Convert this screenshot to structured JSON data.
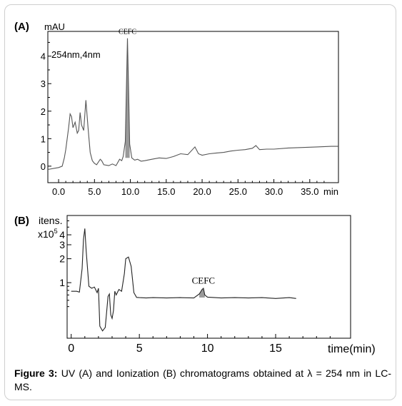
{
  "chart_data": [
    {
      "type": "line",
      "panel_label": "(A)",
      "ylabel": "mAU",
      "xlabel": "min",
      "annotation": "254nm,4nm",
      "peak_label": "CEFC",
      "xlim": [
        -1.5,
        39.0
      ],
      "ylim": [
        -0.6,
        4.9
      ],
      "x_ticks": [
        "0.0",
        "5.0",
        "10.0",
        "15.0",
        "20.0",
        "25.0",
        "30.0",
        "35.0"
      ],
      "y_ticks": [
        "0",
        "1",
        "2",
        "3",
        "4"
      ],
      "peak": {
        "x": 9.6,
        "y": 4.65
      },
      "series": [
        {
          "x": [
            -1.5,
            0.0,
            0.5,
            0.8,
            1.0,
            1.2,
            1.4,
            1.6,
            1.8,
            2.0,
            2.3,
            2.6,
            2.8,
            3.0,
            3.2,
            3.5,
            3.8,
            4.1,
            4.4,
            4.7,
            5.0,
            5.3,
            5.8,
            6.0,
            6.3,
            7.0,
            7.5,
            8.0,
            8.5,
            8.8,
            9.0,
            9.3,
            9.45,
            9.6,
            9.75,
            9.9,
            10.2,
            10.6,
            11.0,
            11.5,
            12.0,
            13.0,
            14.0,
            15.0,
            16.0,
            17.0,
            18.0,
            19.0,
            19.5,
            20.0,
            21.0,
            22.0,
            23.0,
            24.0,
            25.0,
            26.0,
            27.0,
            27.5,
            28.0,
            29.0,
            30.0,
            32.0,
            34.0,
            36.0,
            38.0,
            39.0
          ],
          "y": [
            -0.12,
            -0.05,
            0.0,
            0.3,
            0.6,
            1.0,
            1.4,
            1.9,
            1.8,
            1.4,
            1.6,
            1.2,
            1.3,
            1.95,
            1.5,
            1.3,
            2.4,
            1.4,
            0.5,
            0.2,
            0.1,
            0.05,
            0.25,
            0.2,
            0.05,
            0.02,
            0.08,
            0.02,
            0.25,
            0.2,
            0.35,
            0.9,
            2.8,
            4.65,
            2.8,
            0.8,
            0.3,
            0.22,
            0.25,
            0.18,
            0.2,
            0.25,
            0.3,
            0.28,
            0.35,
            0.45,
            0.42,
            0.7,
            0.45,
            0.4,
            0.45,
            0.48,
            0.5,
            0.55,
            0.58,
            0.6,
            0.65,
            0.75,
            0.6,
            0.62,
            0.62,
            0.66,
            0.68,
            0.7,
            0.72,
            0.72
          ]
        }
      ]
    },
    {
      "type": "line",
      "panel_label": "(B)",
      "ylabel": "itens.",
      "y_multiplier_base": "x10",
      "y_multiplier_exp": "5",
      "xlabel": "time(min)",
      "peak_label": "CEFC",
      "yscale": "log",
      "xlim": [
        -0.3,
        20.5
      ],
      "ylim": [
        0.2,
        7.0
      ],
      "x_ticks": [
        "0",
        "5",
        "10",
        "15"
      ],
      "y_tick_labels": [
        "1",
        "2",
        "3",
        "4"
      ],
      "peak": {
        "x": 9.7,
        "y": 0.82
      },
      "series": [
        {
          "x": [
            0.0,
            0.4,
            0.6,
            0.8,
            0.9,
            1.0,
            1.1,
            1.3,
            1.5,
            1.7,
            1.9,
            2.0,
            2.1,
            2.3,
            2.5,
            2.7,
            2.8,
            2.9,
            3.0,
            3.1,
            3.2,
            3.3,
            3.5,
            3.7,
            3.9,
            4.0,
            4.2,
            4.4,
            4.6,
            4.8,
            5.0,
            5.5,
            6.0,
            7.0,
            8.0,
            9.0,
            9.4,
            9.6,
            9.7,
            9.8,
            10.0,
            11.0,
            12.0,
            13.0,
            14.0,
            15.0,
            16.0,
            16.5
          ],
          "y": [
            0.78,
            0.78,
            0.76,
            1.5,
            3.5,
            4.8,
            2.5,
            0.9,
            0.85,
            0.88,
            0.75,
            0.85,
            0.28,
            0.25,
            0.27,
            0.68,
            0.72,
            0.4,
            0.35,
            0.45,
            0.78,
            0.7,
            0.82,
            0.78,
            1.3,
            2.0,
            2.1,
            1.6,
            0.75,
            0.66,
            0.64,
            0.65,
            0.64,
            0.65,
            0.64,
            0.65,
            0.72,
            0.82,
            0.85,
            0.7,
            0.65,
            0.65,
            0.64,
            0.65,
            0.64,
            0.64,
            0.64,
            0.64
          ]
        }
      ]
    }
  ],
  "caption": {
    "label": "Figure 3:",
    "text": " UV (A) and Ionization (B) chromatograms obtained at λ = 254 nm in LC-MS."
  }
}
